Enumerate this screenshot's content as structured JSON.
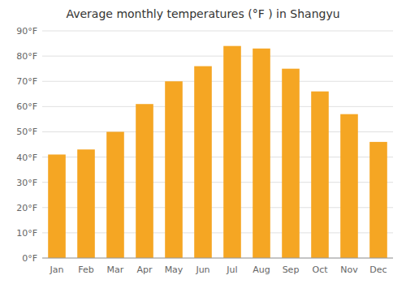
{
  "chart_data": {
    "type": "bar",
    "title": "Average monthly temperatures (°F ) in Shangyu",
    "categories": [
      "Jan",
      "Feb",
      "Mar",
      "Apr",
      "May",
      "Jun",
      "Jul",
      "Aug",
      "Sep",
      "Oct",
      "Nov",
      "Dec"
    ],
    "values": [
      41,
      43,
      50,
      61,
      70,
      76,
      84,
      83,
      75,
      66,
      57,
      46
    ],
    "color": "#F5A623",
    "ylim": [
      0,
      90
    ],
    "yticks": [
      {
        "value": 0,
        "label": "0°F"
      },
      {
        "value": 10,
        "label": "10°F"
      },
      {
        "value": 20,
        "label": "20°F"
      },
      {
        "value": 30,
        "label": "30°F"
      },
      {
        "value": 40,
        "label": "40°F"
      },
      {
        "value": 50,
        "label": "50°F"
      },
      {
        "value": 60,
        "label": "60°F"
      },
      {
        "value": 70,
        "label": "70°F"
      },
      {
        "value": 80,
        "label": "80°F"
      },
      {
        "value": 90,
        "label": "90°F"
      }
    ],
    "grid": true
  }
}
